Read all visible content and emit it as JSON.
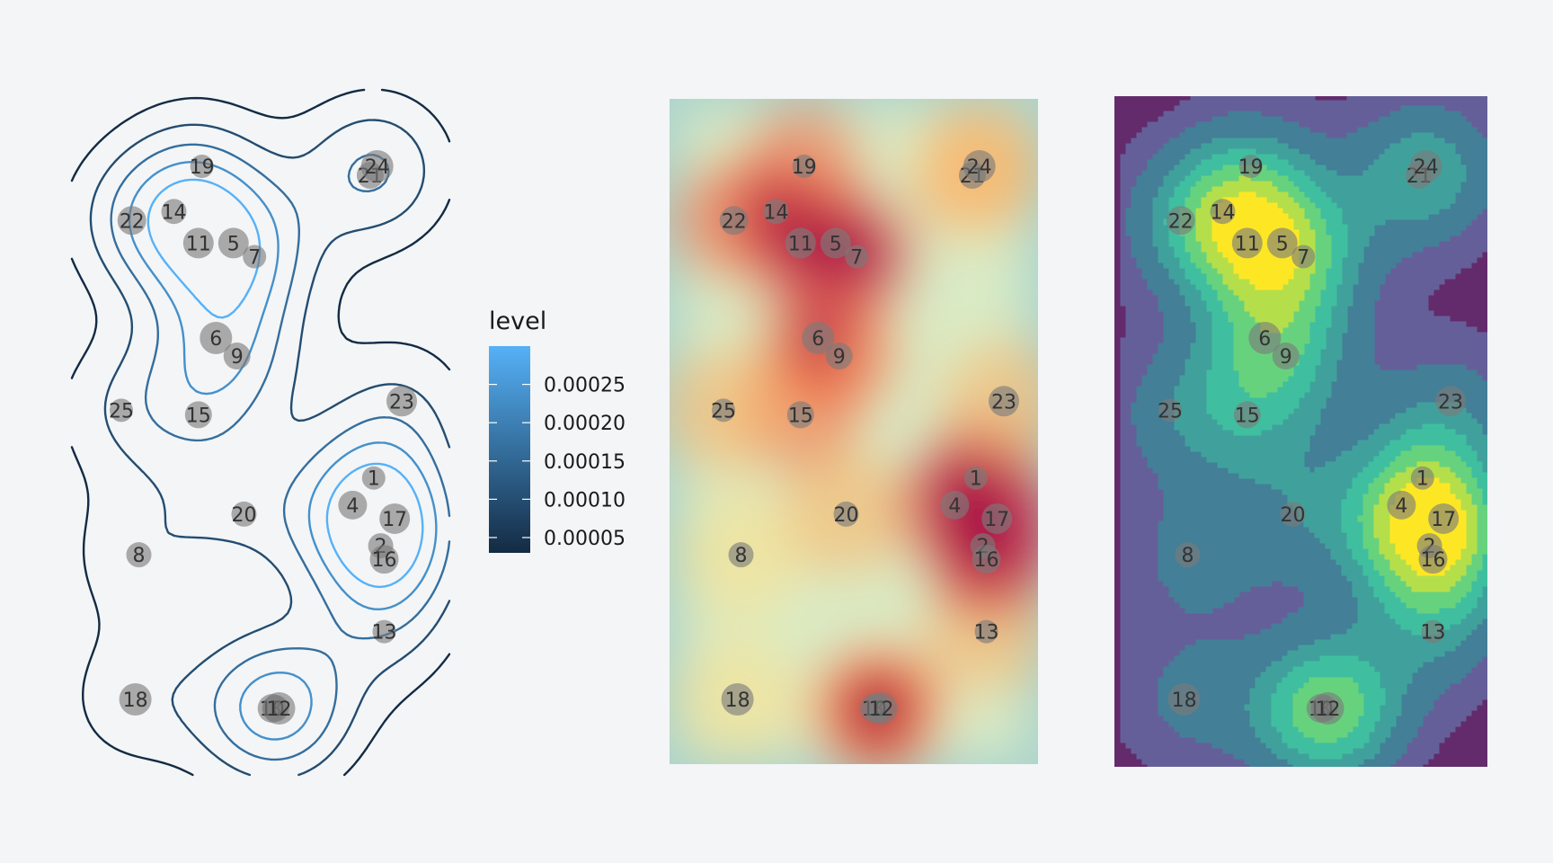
{
  "chart_data": [
    {
      "type": "contour",
      "panel": "contour-lines",
      "legend": {
        "title": "level",
        "ticks": [
          "0.00025",
          "0.00020",
          "0.00015",
          "0.00010",
          "0.00005"
        ],
        "tick_values": [
          0.00025,
          0.0002,
          0.00015,
          0.0001,
          5e-05
        ],
        "range": [
          3e-05,
          0.0003
        ],
        "color_low": "#132b43",
        "color_high": "#56b1f7",
        "placement": "right"
      },
      "line_color_low": "#132b43",
      "line_color_high": "#56b1f7"
    },
    {
      "type": "heatmap",
      "panel": "density-raster",
      "palette": [
        "#9e0142",
        "#d53e4f",
        "#f46d43",
        "#fdae61",
        "#fee08b",
        "#ffffbf",
        "#e6f598",
        "#abdda4",
        "#66c2a5",
        "#3288bd",
        "#5e4fa2"
      ]
    },
    {
      "type": "filled-contour",
      "panel": "filled-contour",
      "palette": [
        "#632b6c",
        "#655f99",
        "#437f97",
        "#40a19c",
        "#3fbfa0",
        "#67d27e",
        "#b5df4a",
        "#fde725"
      ]
    }
  ],
  "points": [
    {
      "label": "1",
      "x": 72,
      "y": 61
    },
    {
      "label": "2",
      "x": 74,
      "y": 46
    },
    {
      "label": "3",
      "x": 44,
      "y": 10
    },
    {
      "label": "4",
      "x": 66,
      "y": 55
    },
    {
      "label": "5",
      "x": 32,
      "y": 113
    },
    {
      "label": "6",
      "x": 27,
      "y": 92
    },
    {
      "label": "7",
      "x": 38,
      "y": 110
    },
    {
      "label": "8",
      "x": 5,
      "y": 44
    },
    {
      "label": "9",
      "x": 33,
      "y": 88
    },
    {
      "label": "10",
      "x": 43,
      "y": 10
    },
    {
      "label": "11",
      "x": 22,
      "y": 113
    },
    {
      "label": "12",
      "x": 45,
      "y": 10
    },
    {
      "label": "13",
      "x": 75,
      "y": 27
    },
    {
      "label": "14",
      "x": 15,
      "y": 120
    },
    {
      "label": "15",
      "x": 22,
      "y": 75
    },
    {
      "label": "16",
      "x": 75,
      "y": 43
    },
    {
      "label": "17",
      "x": 78,
      "y": 52
    },
    {
      "label": "18",
      "x": 4,
      "y": 12
    },
    {
      "label": "19",
      "x": 23,
      "y": 130
    },
    {
      "label": "20",
      "x": 35,
      "y": 53
    },
    {
      "label": "21",
      "x": 71,
      "y": 128
    },
    {
      "label": "22",
      "x": 3,
      "y": 118
    },
    {
      "label": "23",
      "x": 80,
      "y": 78
    },
    {
      "label": "24",
      "x": 73,
      "y": 130
    },
    {
      "label": "25",
      "x": 0,
      "y": 76
    }
  ]
}
